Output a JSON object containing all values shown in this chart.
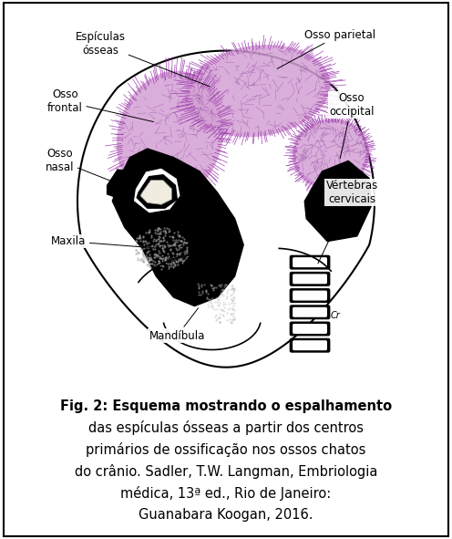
{
  "bg_color": "#ffffff",
  "caption_lines": [
    "Fig. 2: Esquema mostrando o espalhamento",
    "das espículas ósseas a partir dos centros",
    "primários de ossificação nos ossos chatos",
    "do crânio. Sadler, T.W. Langman, Embriologia",
    "médica, 13ª ed., Rio de Janeiro:",
    "Guanabara Koogan, 2016."
  ],
  "label_fontsize": 8.5,
  "caption_fontsize": 10.5,
  "pink_color": "#d4a0d4",
  "dark_color": "#000000",
  "stipple_color": "#999999"
}
